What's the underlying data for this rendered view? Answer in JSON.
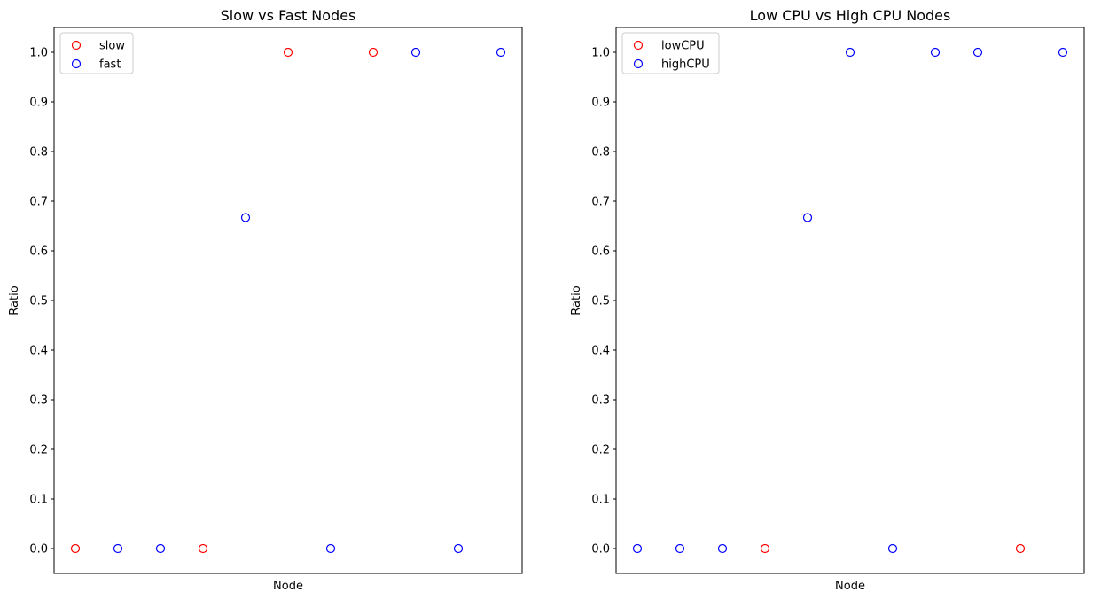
{
  "chart_data": [
    {
      "type": "scatter",
      "title": "Slow vs Fast Nodes",
      "xlabel": "Node",
      "ylabel": "Ratio",
      "ylim": [
        -0.05,
        1.05
      ],
      "yticks": [
        "0.0",
        "0.1",
        "0.2",
        "0.3",
        "0.4",
        "0.5",
        "0.6",
        "0.7",
        "0.8",
        "0.9",
        "1.0"
      ],
      "xticks": [],
      "grid": false,
      "legend_placement": "upper-left",
      "series": [
        {
          "name": "slow",
          "color": "#ff0000",
          "marker": "hollow-circle",
          "x": [
            0,
            3,
            5,
            7
          ],
          "y": [
            0.0,
            0.0,
            1.0,
            1.0
          ]
        },
        {
          "name": "fast",
          "color": "#0000ff",
          "marker": "hollow-circle",
          "x": [
            1,
            2,
            4,
            6,
            8,
            9,
            10
          ],
          "y": [
            0.0,
            0.0,
            0.667,
            0.0,
            1.0,
            0.0,
            1.0
          ]
        }
      ]
    },
    {
      "type": "scatter",
      "title": "Low CPU vs High CPU Nodes",
      "xlabel": "Node",
      "ylabel": "Ratio",
      "ylim": [
        -0.05,
        1.05
      ],
      "yticks": [
        "0.0",
        "0.1",
        "0.2",
        "0.3",
        "0.4",
        "0.5",
        "0.6",
        "0.7",
        "0.8",
        "0.9",
        "1.0"
      ],
      "xticks": [],
      "grid": false,
      "legend_placement": "upper-left",
      "series": [
        {
          "name": "lowCPU",
          "color": "#ff0000",
          "marker": "hollow-circle",
          "x": [
            3,
            9
          ],
          "y": [
            0.0,
            0.0
          ]
        },
        {
          "name": "highCPU",
          "color": "#0000ff",
          "marker": "hollow-circle",
          "x": [
            0,
            1,
            2,
            4,
            5,
            6,
            7,
            8,
            10
          ],
          "y": [
            0.0,
            0.0,
            0.0,
            0.667,
            1.0,
            0.0,
            1.0,
            1.0,
            1.0
          ]
        }
      ]
    }
  ]
}
